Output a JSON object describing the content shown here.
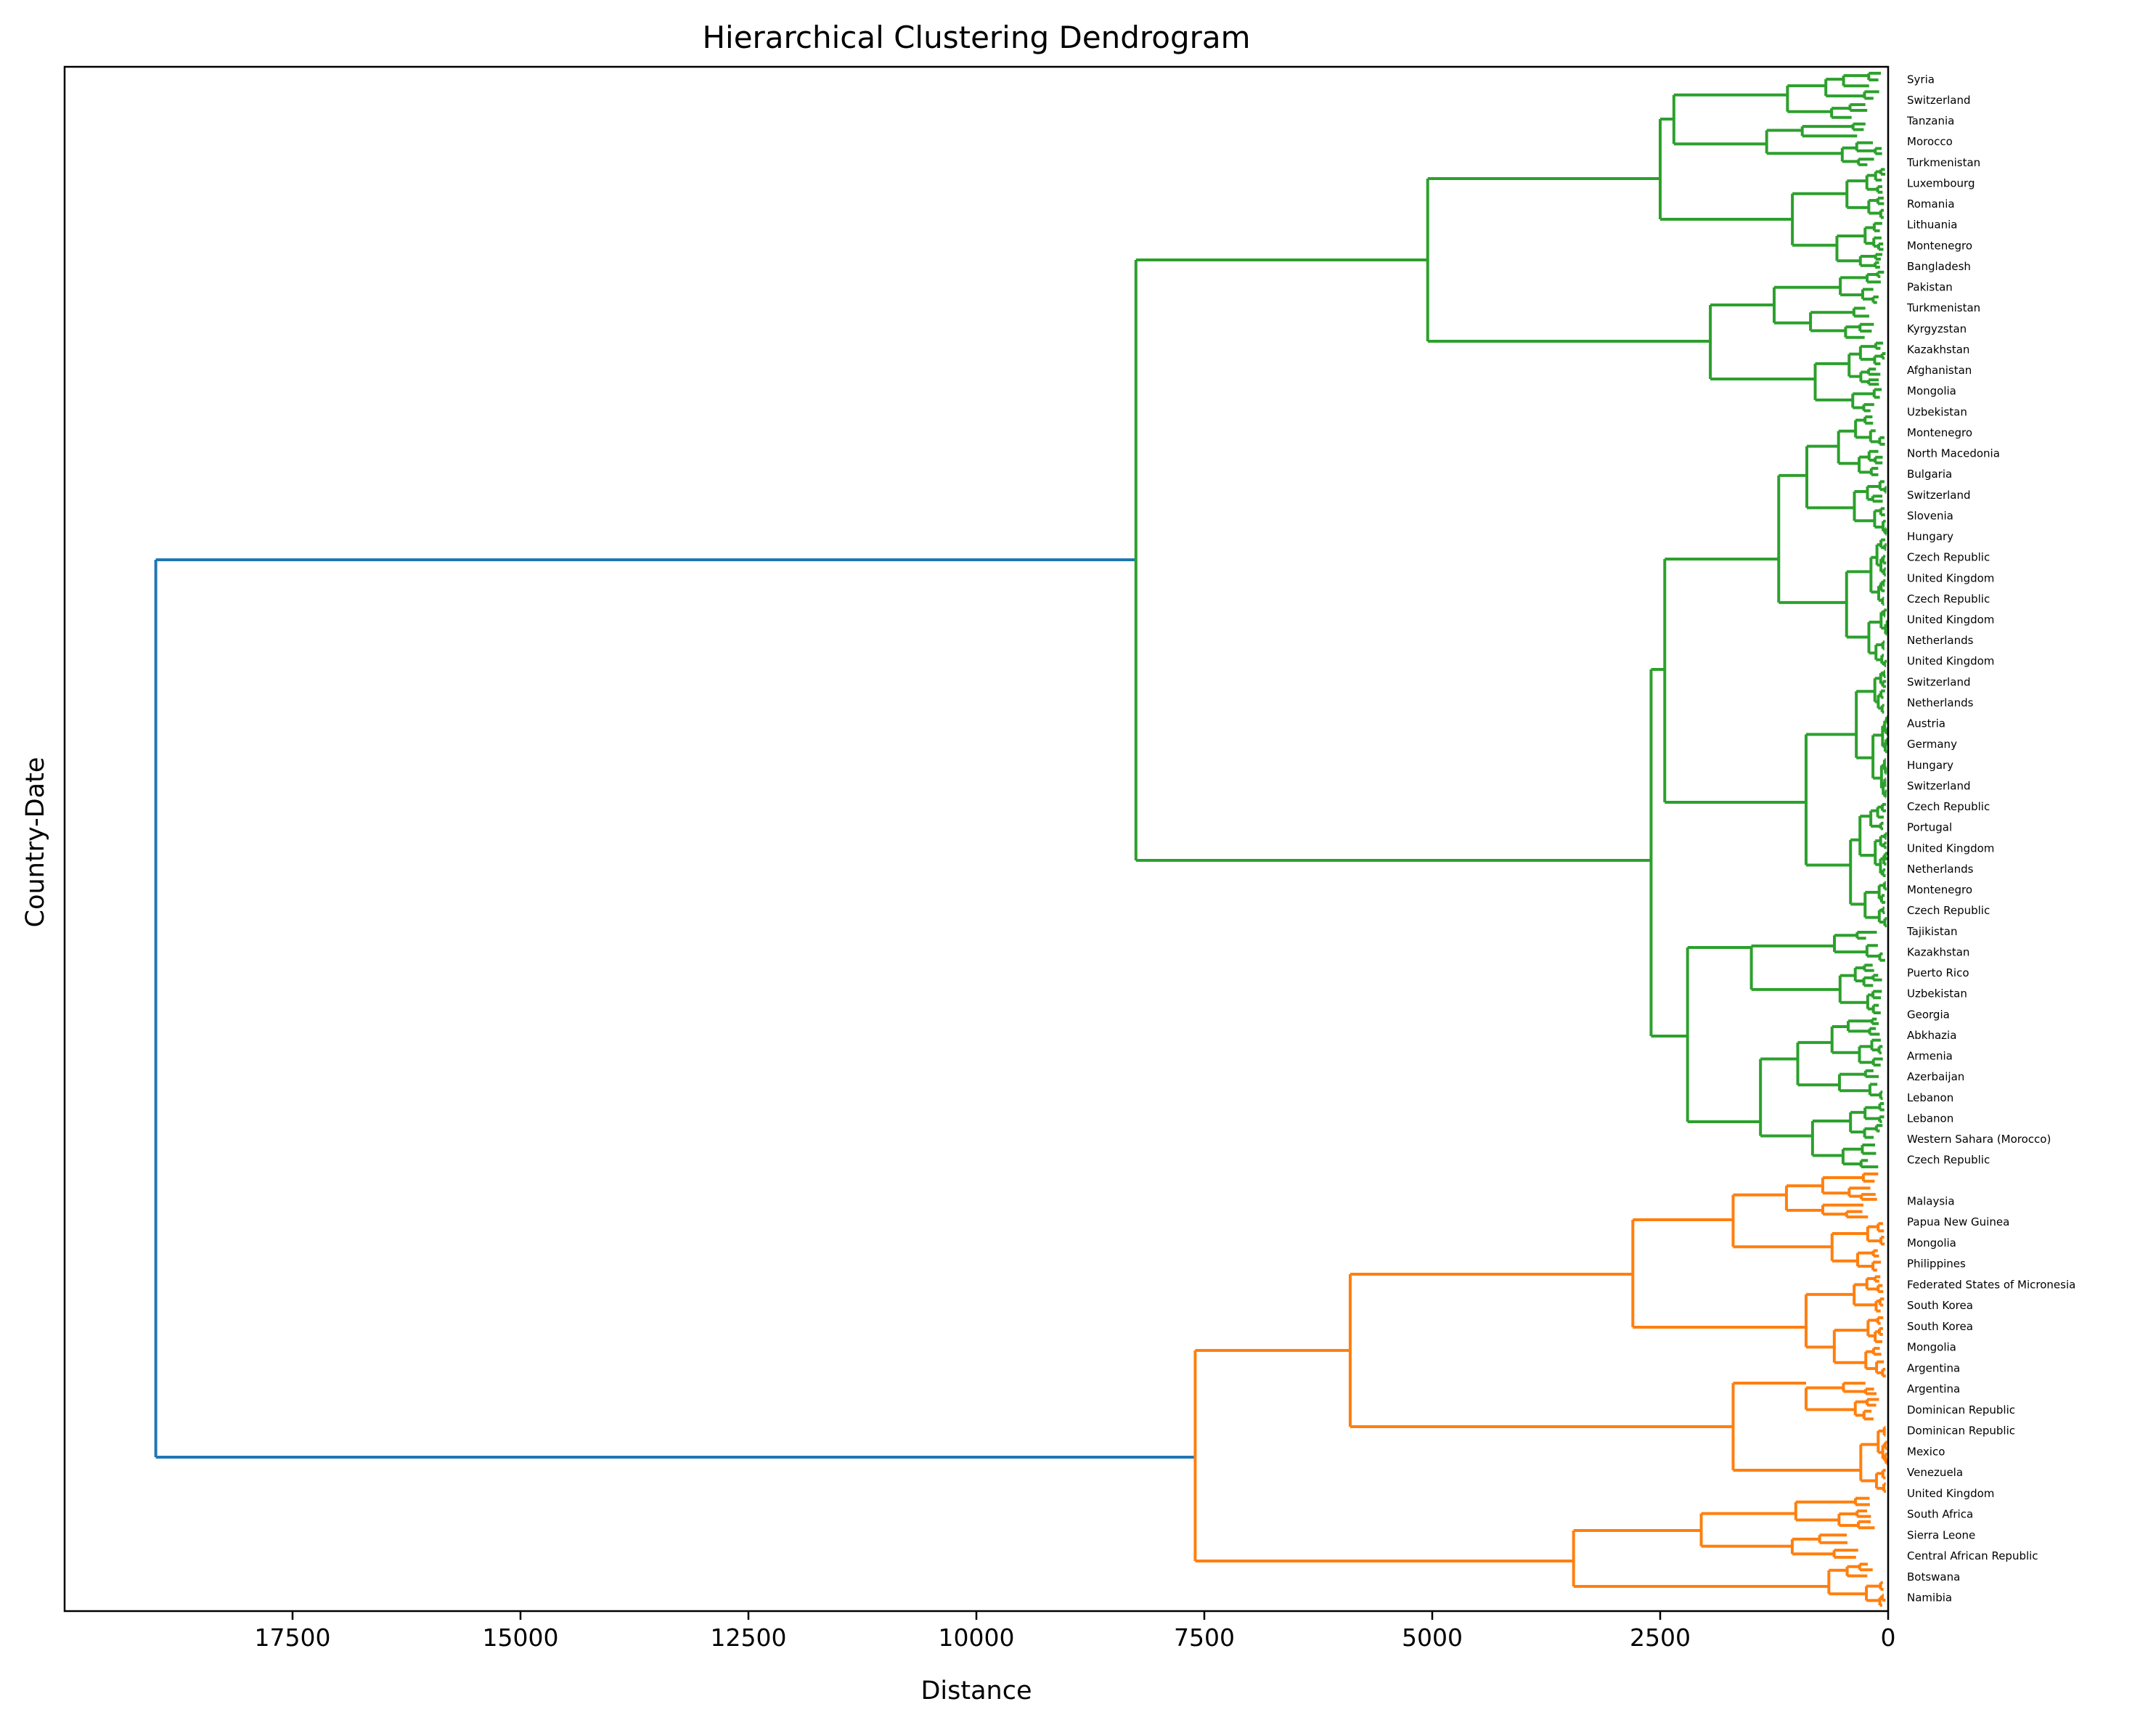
{
  "chart_data": {
    "type": "dendrogram",
    "orientation": "left",
    "title": "Hierarchical Clustering Dendrogram",
    "xlabel": "Distance",
    "ylabel": "Country-Date",
    "xlim": [
      20000,
      0
    ],
    "x_ticks": [
      17500,
      15000,
      12500,
      10000,
      7500,
      5000,
      2500,
      0
    ],
    "x_tick_labels": [
      "17500",
      "15000",
      "12500",
      "10000",
      "7500",
      "5000",
      "2500",
      "0"
    ],
    "colors": {
      "root": "#1f77b4",
      "cluster_1": "#2ca02c",
      "cluster_2": "#ff7f0e"
    },
    "leaf_labels_top_cluster": [
      "Syria",
      "Switzerland",
      "Tanzania",
      "Morocco",
      "Turkmenistan",
      "Luxembourg",
      "Romania",
      "Lithuania",
      "Montenegro",
      "Bangladesh",
      "Pakistan",
      "Turkmenistan",
      "Kyrgyzstan",
      "Kazakhstan",
      "Afghanistan",
      "Mongolia",
      "Uzbekistan",
      "Montenegro",
      "North Macedonia",
      "Bulgaria",
      "Switzerland",
      "Slovenia",
      "Hungary",
      "Czech Republic",
      "United Kingdom",
      "Czech Republic",
      "United Kingdom",
      "Netherlands",
      "United Kingdom",
      "Switzerland",
      "Netherlands",
      "Austria",
      "Germany",
      "Hungary",
      "Switzerland",
      "Czech Republic",
      "Portugal",
      "United Kingdom",
      "Netherlands",
      "Montenegro",
      "Czech Republic",
      "Tajikistan",
      "Kazakhstan",
      "Puerto Rico",
      "Uzbekistan",
      "Georgia",
      "Abkhazia",
      "Armenia",
      "Azerbaijan",
      "Lebanon",
      "Lebanon",
      "Western Sahara (Morocco)",
      "Czech Republic"
    ],
    "leaf_labels_bottom_cluster": [
      "Malaysia",
      "Papua New Guinea",
      "Mongolia",
      "Philippines",
      "Federated States of Micronesia",
      "South Korea",
      "South Korea",
      "Mongolia",
      "Argentina",
      "Argentina",
      "Dominican Republic",
      "Dominican Republic",
      "Mexico",
      "Venezuela",
      "United Kingdom",
      "South Africa",
      "Sierra Leone",
      "Central African Republic",
      "Botswana",
      "Namibia"
    ],
    "links": [
      {
        "color": "root",
        "x_top": 19000,
        "x_left": 8250,
        "x_right": 7600
      },
      {
        "color": "cluster_1",
        "x_top": 8250,
        "x_left": 5050,
        "x_right": 2600
      },
      {
        "color": "cluster_1",
        "x_top": 5050,
        "x_left": 2500,
        "x_right": 1950
      },
      {
        "color": "cluster_1",
        "x_top": 2600,
        "x_left": 2450,
        "x_right": 2200
      },
      {
        "color": "cluster_2",
        "x_top": 7600,
        "x_left": 5900,
        "x_right": 3450
      },
      {
        "color": "cluster_2",
        "x_top": 5900,
        "x_left": 2800,
        "x_right": 1700
      },
      {
        "color": "cluster_2",
        "x_top": 3450,
        "x_left": 2050,
        "x_right": 650
      }
    ]
  }
}
